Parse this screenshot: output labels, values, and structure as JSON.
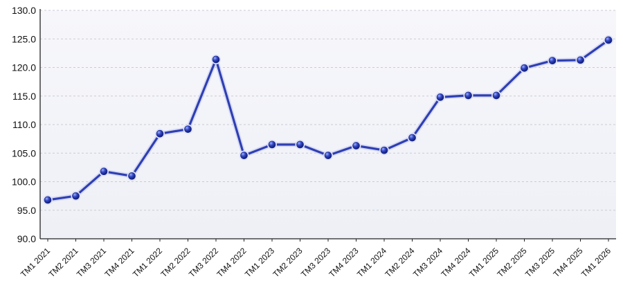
{
  "chart_data": {
    "type": "line",
    "title": "",
    "xlabel": "",
    "ylabel": "",
    "categories": [
      "TM1 2021",
      "TM2 2021",
      "TM3 2021",
      "TM4 2021",
      "TM1 2022",
      "TM2 2022",
      "TM3 2022",
      "TM4 2022",
      "TM1 2023",
      "TM2 2023",
      "TM3 2023",
      "TM4 2023",
      "TM1 2024",
      "TM2 2024",
      "TM3 2024",
      "TM4 2024",
      "TM1 2025",
      "TM2 2025",
      "TM3 2025",
      "TM4 2025",
      "TM1 2026"
    ],
    "series": [
      {
        "values": [
          96.8,
          97.5,
          101.8,
          101.0,
          108.4,
          109.2,
          121.4,
          104.6,
          106.5,
          106.5,
          104.6,
          106.3,
          105.5,
          107.7,
          114.8,
          115.1,
          115.1,
          119.9,
          121.2,
          121.3,
          124.8
        ]
      }
    ],
    "yticks": [
      "90.0",
      "95.0",
      "100.0",
      "105.0",
      "110.0",
      "115.0",
      "120.0",
      "125.0",
      "130.0"
    ],
    "ylim": [
      90,
      130
    ],
    "grid": true,
    "legend": "none",
    "colors": {
      "line": "#2f3fb3",
      "marker": "#1f2f9a",
      "grid": "#c9cbd6",
      "plot_bg": "#f2f3f8"
    }
  }
}
